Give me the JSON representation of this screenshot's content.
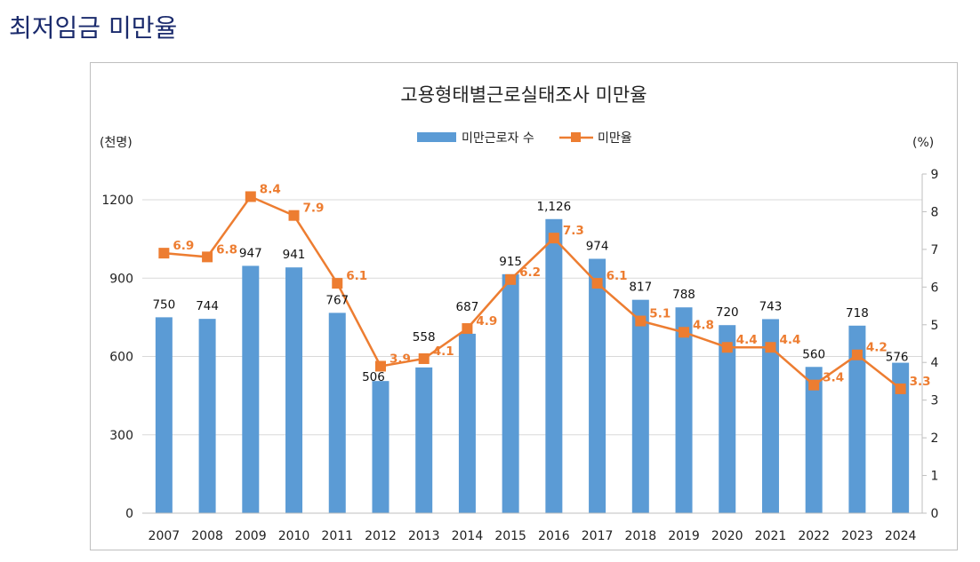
{
  "page": {
    "title": "최저임금 미만율"
  },
  "chart_data": {
    "type": "bar+line",
    "title": "고용형태별근로실태조사 미만율",
    "categories": [
      "2007",
      "2008",
      "2009",
      "2010",
      "2011",
      "2012",
      "2013",
      "2014",
      "2015",
      "2016",
      "2017",
      "2018",
      "2019",
      "2020",
      "2021",
      "2022",
      "2023",
      "2024"
    ],
    "series": [
      {
        "name": "미만근로자 수",
        "type": "bar",
        "axis": "left",
        "color": "#5B9BD5",
        "values": [
          750,
          744,
          947,
          941,
          767,
          506,
          558,
          687,
          915,
          1126,
          974,
          817,
          788,
          720,
          743,
          560,
          718,
          576
        ],
        "labels": [
          "750",
          "744",
          "947",
          "941",
          "767",
          "506",
          "558",
          "687",
          "915",
          "1,126",
          "974",
          "817",
          "788",
          "720",
          "743",
          "560",
          "718",
          "576"
        ]
      },
      {
        "name": "미만율",
        "type": "line",
        "axis": "right",
        "color": "#ED7D31",
        "values": [
          6.9,
          6.8,
          8.4,
          7.9,
          6.1,
          3.9,
          4.1,
          4.9,
          6.2,
          7.3,
          6.1,
          5.1,
          4.8,
          4.4,
          4.4,
          3.4,
          4.2,
          3.3
        ],
        "labels": [
          "6.9",
          "6.8",
          "8.4",
          "7.9",
          "6.1",
          "3.9",
          "4.1",
          "4.9",
          "6.2",
          "7.3",
          "6.1",
          "5.1",
          "4.8",
          "4.4",
          "4.4",
          "3.4",
          "4.2",
          "3.3"
        ]
      }
    ],
    "left_axis": {
      "unit": "(천명)",
      "ylim": [
        0,
        1300
      ],
      "ticks": [
        0,
        300,
        600,
        900,
        1200
      ],
      "tick_labels": [
        "0",
        "300",
        "600",
        "900",
        "1200"
      ]
    },
    "right_axis": {
      "unit": "(%)",
      "ylim": [
        0,
        9
      ],
      "ticks": [
        0,
        1,
        2,
        3,
        4,
        5,
        6,
        7,
        8,
        9
      ],
      "tick_labels": [
        "0",
        "1",
        "2",
        "3",
        "4",
        "5",
        "6",
        "7",
        "8",
        "9"
      ]
    },
    "grid": true,
    "legend_position": "top-center"
  }
}
